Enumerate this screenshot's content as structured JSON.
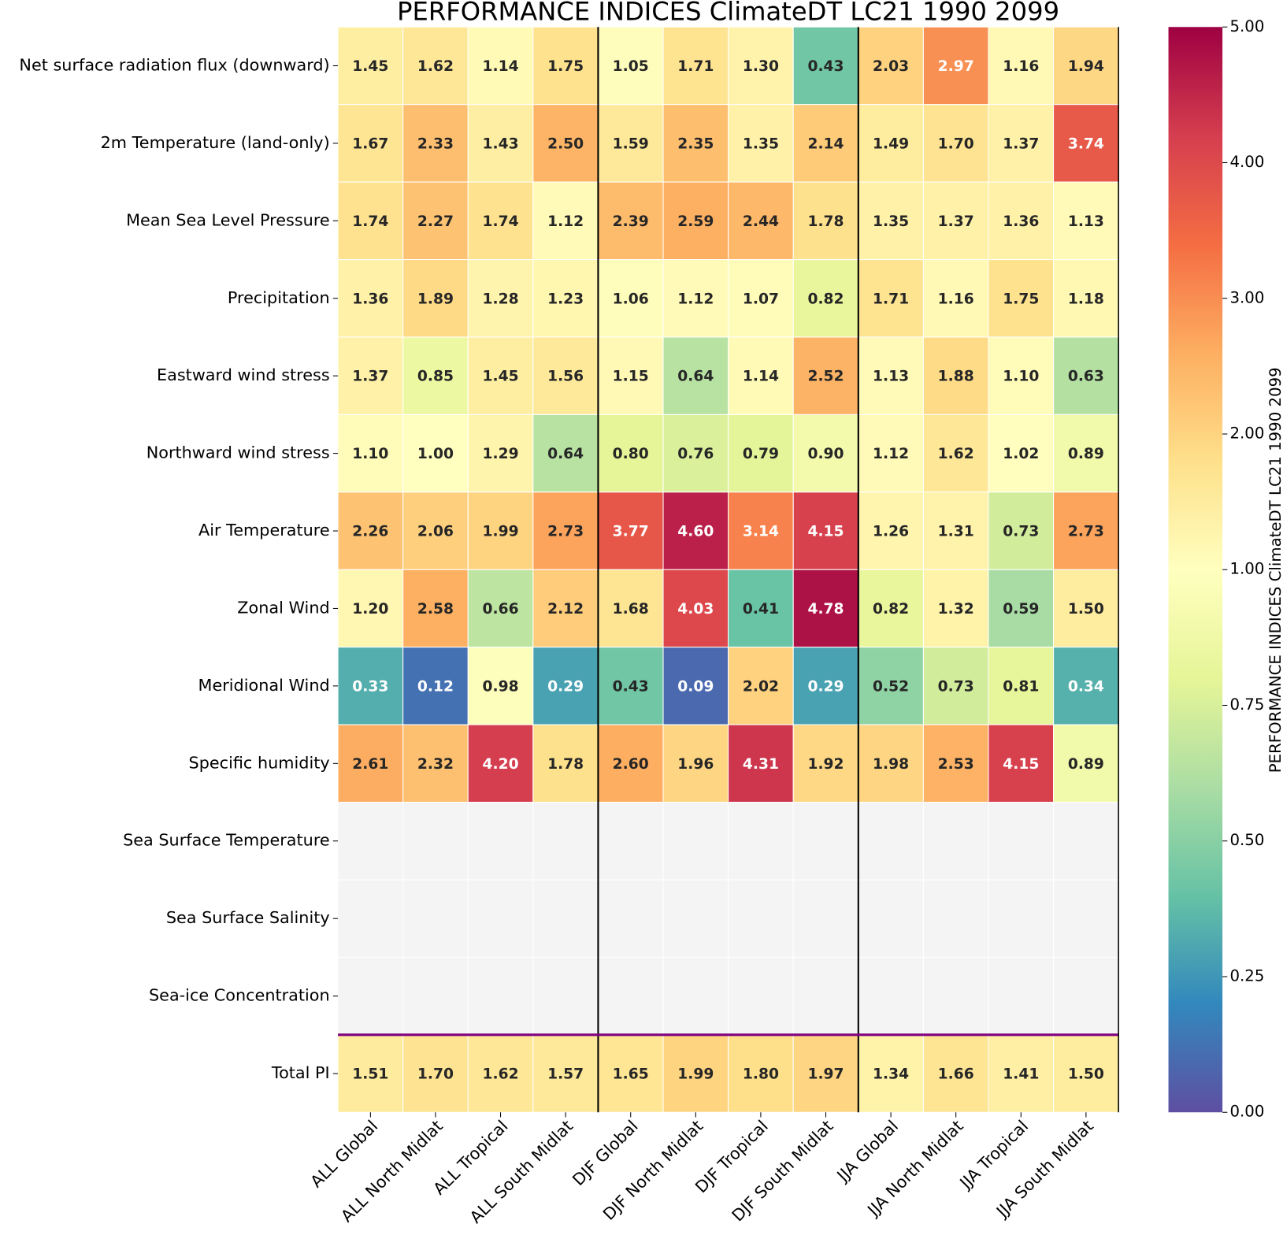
{
  "chart_data": {
    "type": "heatmap",
    "title": "PERFORMANCE INDICES ClimateDT LC21 1990 2099",
    "colorbar_label": "PERFORMANCE INDICES ClimateDT LC21 1990 2099",
    "rows": [
      "Net surface radiation flux (downward)",
      "2m Temperature (land-only)",
      "Mean Sea Level Pressure",
      "Precipitation",
      "Eastward wind stress",
      "Northward wind stress",
      "Air Temperature",
      "Zonal Wind",
      "Meridional Wind",
      "Specific humidity",
      "Sea Surface Temperature",
      "Sea Surface Salinity",
      "Sea-ice Concentration",
      "Total PI"
    ],
    "columns": [
      "ALL Global",
      "ALL North Midlat",
      "ALL Tropical",
      "ALL South Midlat",
      "DJF Global",
      "DJF North Midlat",
      "DJF Tropical",
      "DJF South Midlat",
      "JJA Global",
      "JJA North Midlat",
      "JJA Tropical",
      "JJA South Midlat"
    ],
    "values": [
      [
        1.45,
        1.62,
        1.14,
        1.75,
        1.05,
        1.71,
        1.3,
        0.43,
        2.03,
        2.97,
        1.16,
        1.94
      ],
      [
        1.67,
        2.33,
        1.43,
        2.5,
        1.59,
        2.35,
        1.35,
        2.14,
        1.49,
        1.7,
        1.37,
        3.74
      ],
      [
        1.74,
        2.27,
        1.74,
        1.12,
        2.39,
        2.59,
        2.44,
        1.78,
        1.35,
        1.37,
        1.36,
        1.13
      ],
      [
        1.36,
        1.89,
        1.28,
        1.23,
        1.06,
        1.12,
        1.07,
        0.82,
        1.71,
        1.16,
        1.75,
        1.18
      ],
      [
        1.37,
        0.85,
        1.45,
        1.56,
        1.15,
        0.64,
        1.14,
        2.52,
        1.13,
        1.88,
        1.1,
        0.63
      ],
      [
        1.1,
        1.0,
        1.29,
        0.64,
        0.8,
        0.76,
        0.79,
        0.9,
        1.12,
        1.62,
        1.02,
        0.89
      ],
      [
        2.26,
        2.06,
        1.99,
        2.73,
        3.77,
        4.6,
        3.14,
        4.15,
        1.26,
        1.31,
        0.73,
        2.73
      ],
      [
        1.2,
        2.58,
        0.66,
        2.12,
        1.68,
        4.03,
        0.41,
        4.78,
        0.82,
        1.32,
        0.59,
        1.5
      ],
      [
        0.33,
        0.12,
        0.98,
        0.29,
        0.43,
        0.09,
        2.02,
        0.29,
        0.52,
        0.73,
        0.81,
        0.34
      ],
      [
        2.61,
        2.32,
        4.2,
        1.78,
        2.6,
        1.96,
        4.31,
        1.92,
        1.98,
        2.53,
        4.15,
        0.89
      ],
      [
        null,
        null,
        null,
        null,
        null,
        null,
        null,
        null,
        null,
        null,
        null,
        null
      ],
      [
        null,
        null,
        null,
        null,
        null,
        null,
        null,
        null,
        null,
        null,
        null,
        null
      ],
      [
        null,
        null,
        null,
        null,
        null,
        null,
        null,
        null,
        null,
        null,
        null,
        null
      ],
      [
        1.51,
        1.7,
        1.62,
        1.57,
        1.65,
        1.99,
        1.8,
        1.97,
        1.34,
        1.66,
        1.41,
        1.5
      ]
    ],
    "value_labels": [
      [
        "1.45",
        "1.62",
        "1.14",
        "1.75",
        "1.05",
        "1.71",
        "1.30",
        "0.43",
        "2.03",
        "2.97",
        "1.16",
        "1.94"
      ],
      [
        "1.67",
        "2.33",
        "1.43",
        "2.50",
        "1.59",
        "2.35",
        "1.35",
        "2.14",
        "1.49",
        "1.70",
        "1.37",
        "3.74"
      ],
      [
        "1.74",
        "2.27",
        "1.74",
        "1.12",
        "2.39",
        "2.59",
        "2.44",
        "1.78",
        "1.35",
        "1.37",
        "1.36",
        "1.13"
      ],
      [
        "1.36",
        "1.89",
        "1.28",
        "1.23",
        "1.06",
        "1.12",
        "1.07",
        "0.82",
        "1.71",
        "1.16",
        "1.75",
        "1.18"
      ],
      [
        "1.37",
        "0.85",
        "1.45",
        "1.56",
        "1.15",
        "0.64",
        "1.14",
        "2.52",
        "1.13",
        "1.88",
        "1.10",
        "0.63"
      ],
      [
        "1.10",
        "1.00",
        "1.29",
        "0.64",
        "0.80",
        "0.76",
        "0.79",
        "0.90",
        "1.12",
        "1.62",
        "1.02",
        "0.89"
      ],
      [
        "2.26",
        "2.06",
        "1.99",
        "2.73",
        "3.77",
        "4.60",
        "3.14",
        "4.15",
        "1.26",
        "1.31",
        "0.73",
        "2.73"
      ],
      [
        "1.20",
        "2.58",
        "0.66",
        "2.12",
        "1.68",
        "4.03",
        "0.41",
        "4.78",
        "0.82",
        "1.32",
        "0.59",
        "1.50"
      ],
      [
        "0.33",
        "0.12",
        "0.98",
        "0.29",
        "0.43",
        "0.09",
        "2.02",
        "0.29",
        "0.52",
        "0.73",
        "0.81",
        "0.34"
      ],
      [
        "2.61",
        "2.32",
        "4.20",
        "1.78",
        "2.60",
        "1.96",
        "4.31",
        "1.92",
        "1.98",
        "2.53",
        "4.15",
        "0.89"
      ],
      [
        null,
        null,
        null,
        null,
        null,
        null,
        null,
        null,
        null,
        null,
        null,
        null
      ],
      [
        null,
        null,
        null,
        null,
        null,
        null,
        null,
        null,
        null,
        null,
        null,
        null
      ],
      [
        null,
        null,
        null,
        null,
        null,
        null,
        null,
        null,
        null,
        null,
        null,
        null
      ],
      [
        "1.51",
        "1.70",
        "1.62",
        "1.57",
        "1.65",
        "1.99",
        "1.80",
        "1.97",
        "1.34",
        "1.66",
        "1.41",
        "1.50"
      ]
    ],
    "clim": [
      0,
      5
    ],
    "cticks": [
      {
        "value": 0,
        "label": "0.00"
      },
      {
        "value": 0.25,
        "label": "0.25"
      },
      {
        "value": 0.5,
        "label": "0.50"
      },
      {
        "value": 0.75,
        "label": "0.75"
      },
      {
        "value": 1,
        "label": "1.00"
      },
      {
        "value": 2,
        "label": "2.00"
      },
      {
        "value": 3,
        "label": "3.00"
      },
      {
        "value": 4,
        "label": "4.00"
      },
      {
        "value": 5,
        "label": "5.00"
      }
    ],
    "colormap": [
      "#5e4fa2",
      "#3288bd",
      "#66c2a5",
      "#abdda4",
      "#e6f598",
      "#ffffbf",
      "#fee08b",
      "#fdae61",
      "#f46d43",
      "#d53e4f",
      "#9e0142"
    ],
    "na_color": "#f4f4f4"
  }
}
